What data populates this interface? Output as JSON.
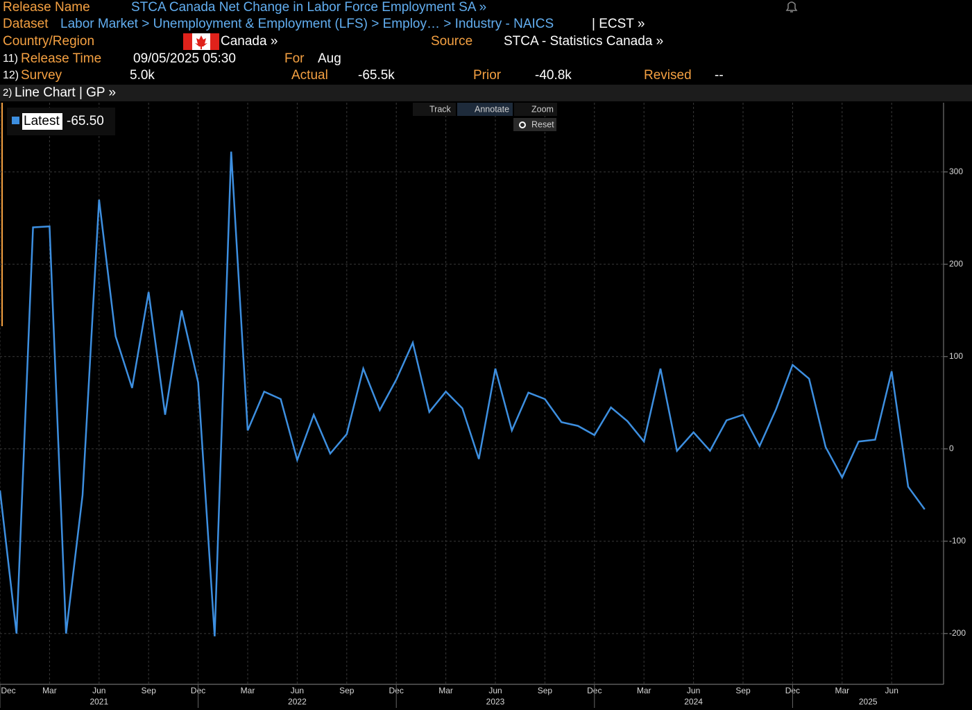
{
  "header": {
    "release_name": {
      "label": "Release Name",
      "value": "STCA Canada Net Change in Labor Force Employment SA »"
    },
    "dataset": {
      "label": "Dataset",
      "path": "Labor Market > Unemployment & Employment (LFS) > Employ… > Industry - NAICS",
      "suffix": "| ECST »"
    },
    "country": {
      "label": "Country/Region",
      "value": "Canada »"
    },
    "source": {
      "label": "Source",
      "value": "STCA - Statistics Canada »"
    },
    "release_time": {
      "num": "11)",
      "label": "Release Time",
      "value": "09/05/2025 05:30"
    },
    "for": {
      "label": "For",
      "value": "Aug"
    },
    "survey": {
      "num": "12)",
      "label": "Survey",
      "value": "5.0k"
    },
    "actual": {
      "label": "Actual",
      "value": "-65.5k"
    },
    "prior": {
      "label": "Prior",
      "value": "-40.8k"
    },
    "revised": {
      "label": "Revised",
      "value": "--"
    }
  },
  "toolbar": {
    "num": "2)",
    "title": "Line Chart | GP »"
  },
  "controls": [
    "Track",
    "Annotate",
    "Zoom",
    "Reset"
  ],
  "chart_data": {
    "type": "line",
    "categories": [
      "Dec",
      null,
      null,
      "Mar",
      null,
      null,
      "Jun",
      null,
      null,
      "Sep",
      null,
      null,
      "Dec",
      null,
      null,
      "Mar",
      null,
      null,
      "Jun",
      null,
      null,
      "Sep",
      null,
      null,
      "Dec",
      null,
      null,
      "Mar",
      null,
      null,
      "Jun",
      null,
      null,
      "Sep",
      null,
      null,
      "Dec",
      null,
      null,
      "Mar",
      null,
      null,
      "Jun",
      null,
      null,
      "Sep",
      null,
      null,
      "Dec",
      null,
      null,
      "Mar",
      null,
      null,
      "Jun",
      null,
      null
    ],
    "years": [
      "2021",
      "2022",
      "2023",
      "2024",
      "2025"
    ],
    "series": [
      {
        "name": "Latest",
        "color": "#3d8fe0",
        "values": [
          -45,
          -200,
          240,
          241,
          -200,
          -50,
          270,
          122,
          66,
          170,
          37,
          150,
          72,
          -203,
          322,
          20,
          62,
          54,
          -12,
          37,
          -5,
          16,
          87,
          42,
          75,
          115,
          40,
          62,
          44,
          -11,
          87,
          20,
          61,
          54,
          29,
          25,
          15,
          45,
          30,
          8,
          87,
          -2,
          18,
          -2,
          31,
          37,
          3,
          43,
          91,
          76,
          2,
          -31,
          8,
          10,
          84,
          -41,
          -65.5
        ]
      }
    ],
    "latest_label": "-65.50",
    "ylim": [
      -255,
      375
    ],
    "yticks": [
      -200,
      -100,
      0,
      100,
      200,
      300
    ],
    "grid": true
  }
}
